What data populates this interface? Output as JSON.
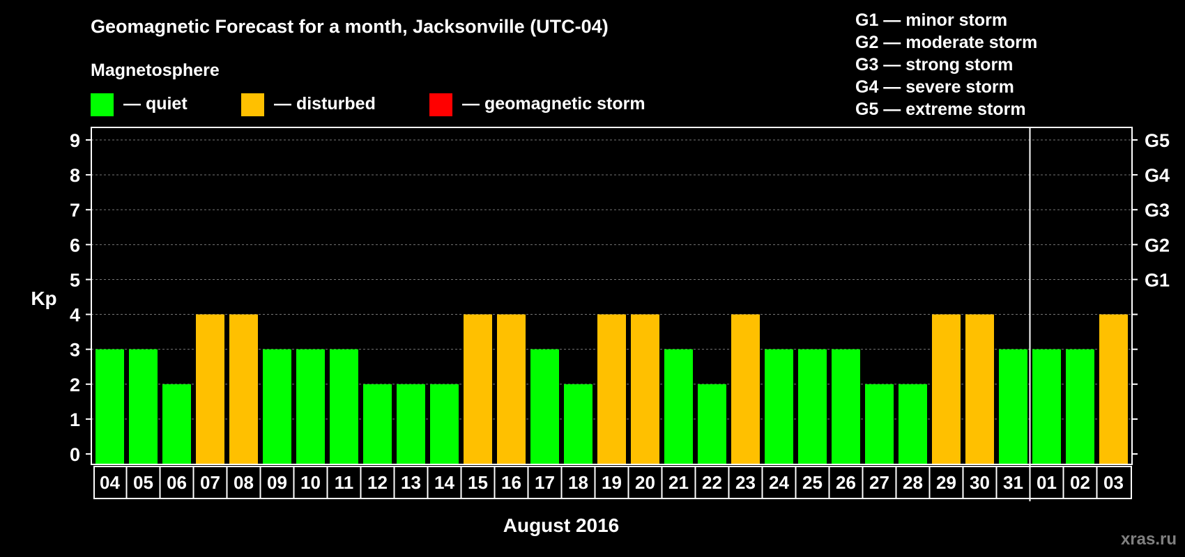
{
  "chart_data": {
    "type": "bar",
    "title": "Geomagnetic Forecast for a month, Jacksonville (UTC-04)",
    "subtitle": "Magnetosphere",
    "ylabel": "Kp",
    "xlabel": "August 2016",
    "ylim": [
      0,
      9
    ],
    "yticks": [
      0,
      1,
      2,
      3,
      4,
      5,
      6,
      7,
      8,
      9
    ],
    "right_axis": [
      {
        "value": 5,
        "label": "G1"
      },
      {
        "value": 6,
        "label": "G2"
      },
      {
        "value": 7,
        "label": "G3"
      },
      {
        "value": 8,
        "label": "G4"
      },
      {
        "value": 9,
        "label": "G5"
      }
    ],
    "legend": [
      {
        "label": "— quiet",
        "color": "#00ff00"
      },
      {
        "label": "— disturbed",
        "color": "#ffc000"
      },
      {
        "label": "— geomagnetic storm",
        "color": "#ff0000"
      }
    ],
    "storm_scale": [
      "G1 — minor storm",
      "G2 — moderate storm",
      "G3 — strong storm",
      "G4 — severe storm",
      "G5 — extreme storm"
    ],
    "categories": [
      "04",
      "05",
      "06",
      "07",
      "08",
      "09",
      "10",
      "11",
      "12",
      "13",
      "14",
      "15",
      "16",
      "17",
      "18",
      "19",
      "20",
      "21",
      "22",
      "23",
      "24",
      "25",
      "26",
      "27",
      "28",
      "29",
      "30",
      "31",
      "01",
      "02",
      "03"
    ],
    "values": [
      3,
      3,
      2,
      4,
      4,
      3,
      3,
      3,
      2,
      2,
      2,
      4,
      4,
      3,
      2,
      4,
      4,
      3,
      2,
      4,
      3,
      3,
      3,
      2,
      2,
      4,
      4,
      3,
      3,
      3,
      4
    ],
    "month_divider_after": "31",
    "grid": true,
    "colors": {
      "quiet": "#00ff00",
      "disturbed": "#ffc000",
      "storm": "#ff0000",
      "grid": "#777777"
    },
    "watermark": "xras.ru"
  }
}
